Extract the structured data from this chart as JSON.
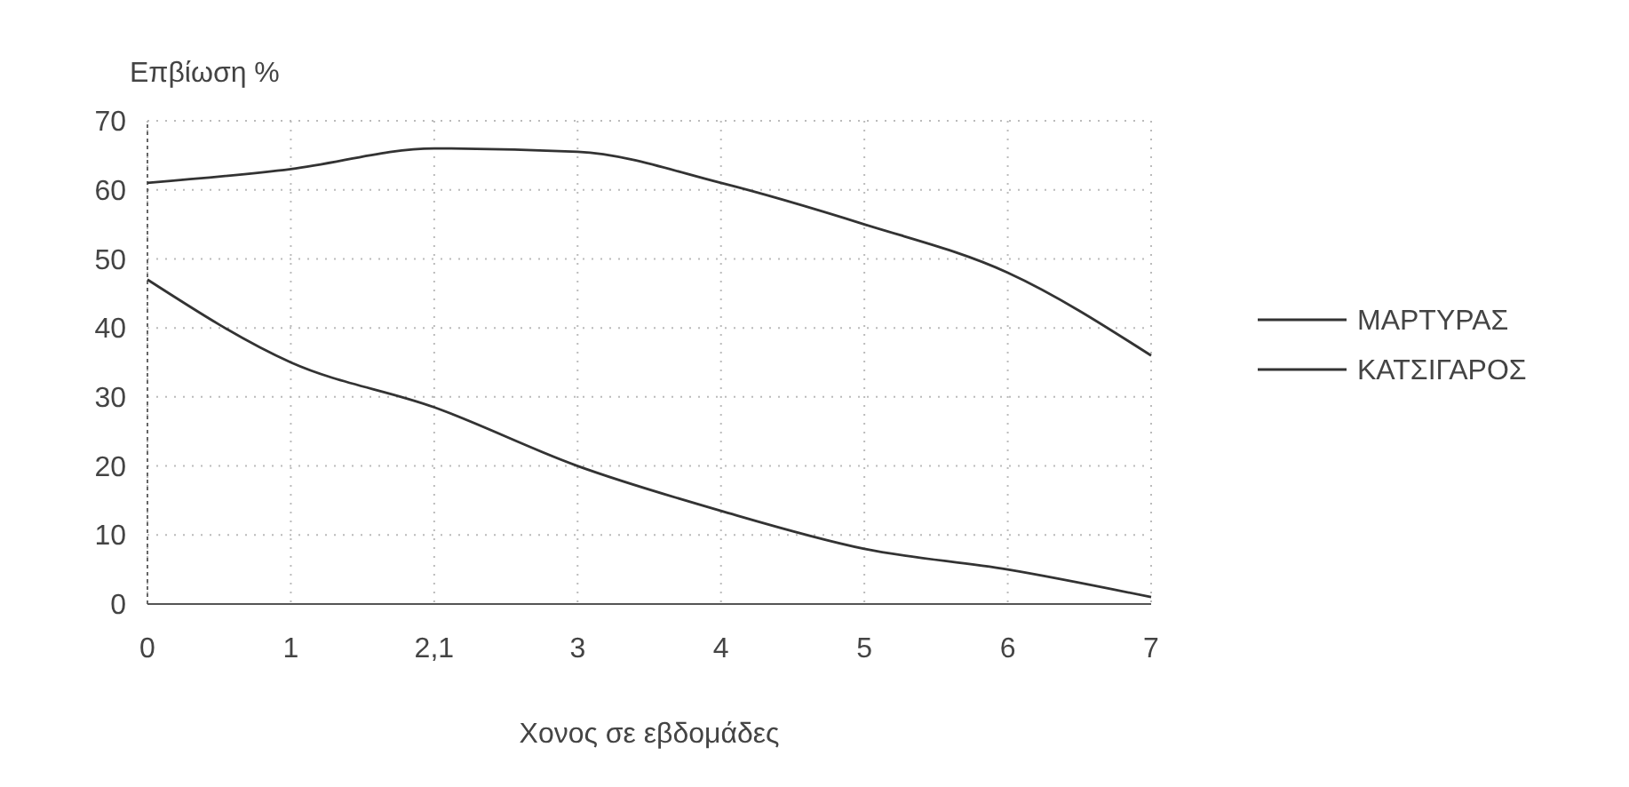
{
  "chart_data": {
    "type": "line",
    "ylabel": "Επβίωση %",
    "xlabel": "Χονος σε εβδομάδες",
    "categories": [
      "0",
      "1",
      "2,1",
      "3",
      "4",
      "5",
      "6",
      "7"
    ],
    "series": [
      {
        "name": "ΜΑΡΤΥΡΑΣ",
        "color": "#333333",
        "values": [
          61,
          63,
          66,
          65.5,
          61,
          55,
          48,
          36
        ]
      },
      {
        "name": "ΚΑΤΣΙΓΑΡΟΣ",
        "color": "#333333",
        "values": [
          47,
          35,
          28.5,
          20,
          13.5,
          8,
          5,
          1
        ]
      }
    ],
    "ylim": [
      0,
      70
    ],
    "yticks": [
      0,
      10,
      20,
      30,
      40,
      50,
      60,
      70
    ],
    "grid": true,
    "legend": "right",
    "marker": "none",
    "line_style": "solid"
  }
}
